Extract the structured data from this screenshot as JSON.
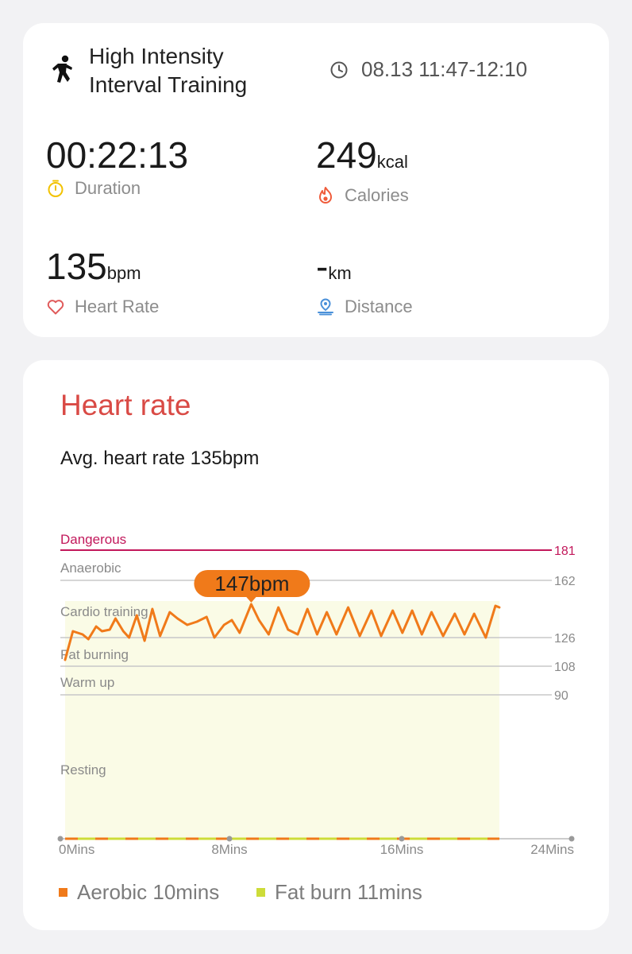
{
  "summary": {
    "workout_title_line1": "High Intensity",
    "workout_title_line2": "Interval Training",
    "time_range": "08.13 11:47-12:10",
    "duration": {
      "value": "00:22:13",
      "label": "Duration",
      "color": "#f2c200"
    },
    "calories": {
      "value": "249",
      "unit": "kcal",
      "label": "Calories",
      "color": "#ef5b3a"
    },
    "heart_rate": {
      "value": "135",
      "unit": "bpm",
      "label": "Heart Rate",
      "color": "#e05a5a"
    },
    "distance": {
      "value": "-",
      "unit": "km",
      "label": "Distance",
      "color": "#4a90d9"
    }
  },
  "heart_rate_card": {
    "title": "Heart rate",
    "avg_text": "Avg. heart rate 135bpm"
  },
  "chart_data": {
    "type": "line",
    "zones": [
      {
        "name": "Dangerous",
        "value": 181,
        "color": "#c2185b"
      },
      {
        "name": "Anaerobic",
        "value": 162
      },
      {
        "name": "Cardio training",
        "value": 126
      },
      {
        "name": "Fat burning",
        "value": 108
      },
      {
        "name": "Warm up",
        "value": 90
      },
      {
        "name": "Resting"
      }
    ],
    "threshold_labels": [
      "181",
      "162",
      "126",
      "108",
      "90"
    ],
    "x_ticks": [
      "0Mins",
      "8Mins",
      "16Mins",
      "24Mins"
    ],
    "xlim": [
      0,
      24
    ],
    "peak_label": "147bpm",
    "peak_minute": 9.6,
    "series": [
      {
        "color": "#f07a1a",
        "points": [
          [
            0,
            112
          ],
          [
            0.4,
            130
          ],
          [
            0.9,
            128
          ],
          [
            1.2,
            125
          ],
          [
            1.6,
            133
          ],
          [
            1.9,
            130
          ],
          [
            2.3,
            131
          ],
          [
            2.6,
            138
          ],
          [
            3.0,
            130
          ],
          [
            3.3,
            126
          ],
          [
            3.7,
            140
          ],
          [
            4.1,
            124
          ],
          [
            4.5,
            144
          ],
          [
            4.9,
            127
          ],
          [
            5.4,
            142
          ],
          [
            5.8,
            138
          ],
          [
            6.3,
            134
          ],
          [
            6.8,
            136
          ],
          [
            7.3,
            139
          ],
          [
            7.7,
            126
          ],
          [
            8.2,
            134
          ],
          [
            8.6,
            137
          ],
          [
            9.0,
            129
          ],
          [
            9.6,
            147
          ],
          [
            10.0,
            137
          ],
          [
            10.5,
            128
          ],
          [
            11.0,
            145
          ],
          [
            11.5,
            131
          ],
          [
            12.0,
            128
          ],
          [
            12.5,
            144
          ],
          [
            13.0,
            128
          ],
          [
            13.5,
            142
          ],
          [
            14.0,
            128
          ],
          [
            14.6,
            145
          ],
          [
            15.2,
            127
          ],
          [
            15.8,
            143
          ],
          [
            16.3,
            127
          ],
          [
            16.9,
            143
          ],
          [
            17.4,
            129
          ],
          [
            17.9,
            143
          ],
          [
            18.4,
            128
          ],
          [
            18.9,
            142
          ],
          [
            19.5,
            127
          ],
          [
            20.1,
            141
          ],
          [
            20.6,
            128
          ],
          [
            21.1,
            141
          ],
          [
            21.7,
            126
          ],
          [
            22.2,
            146
          ],
          [
            22.4,
            145
          ]
        ]
      }
    ],
    "legend": [
      {
        "label": "Aerobic 10mins",
        "color": "#f07a1a"
      },
      {
        "label": "Fat burn 11mins",
        "color": "#cddc39"
      }
    ],
    "fill_color": "#fafbe6"
  }
}
